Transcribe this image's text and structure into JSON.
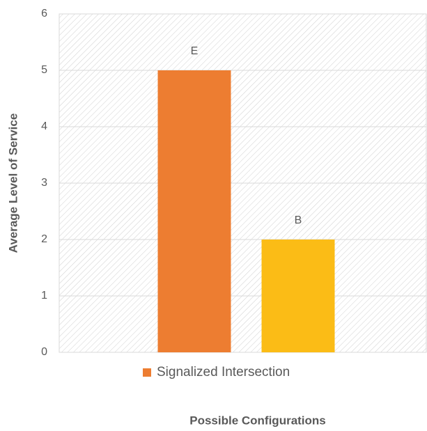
{
  "chart_data": {
    "type": "bar",
    "y_label": "Average Level of Service",
    "x_label": "Possible Configurations",
    "categories": [
      null
    ],
    "series": [
      {
        "name": "Signalized Intersection",
        "color": "#ed7d31",
        "values": [
          5
        ],
        "value_labels": [
          "E"
        ]
      },
      {
        "color": "#fbbc16",
        "values": [
          2
        ],
        "value_labels": [
          "B"
        ]
      }
    ],
    "ylim": [
      0,
      6
    ],
    "yticks": [
      0,
      1,
      2,
      3,
      4,
      5,
      6
    ],
    "grid": true,
    "legend": "bottom"
  }
}
